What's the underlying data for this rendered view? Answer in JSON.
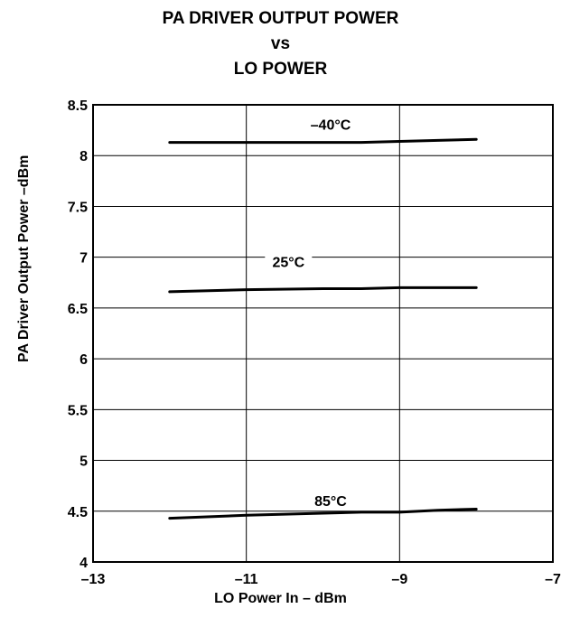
{
  "chart_data": {
    "type": "line",
    "title_lines": [
      "PA DRIVER OUTPUT POWER",
      "vs",
      "LO POWER"
    ],
    "xlabel": "LO Power In – dBm",
    "ylabel": "PA Driver Output Power –dBm",
    "xlim": [
      -13,
      -7
    ],
    "ylim": [
      4,
      8.5
    ],
    "x_ticks": [
      -13,
      -11,
      -9,
      -7
    ],
    "x_tick_labels": [
      "–13",
      "–11",
      "–9",
      "–7"
    ],
    "y_ticks": [
      4,
      4.5,
      5,
      5.5,
      6,
      6.5,
      7,
      7.5,
      8,
      8.5
    ],
    "y_tick_labels": [
      "4",
      "4.5",
      "5",
      "5.5",
      "6",
      "6.5",
      "7",
      "7.5",
      "8",
      "8.5"
    ],
    "grid": true,
    "series": [
      {
        "name": "–40°C",
        "x": [
          -12,
          -11,
          -10,
          -9.5,
          -9,
          -8.5,
          -8
        ],
        "y": [
          8.13,
          8.13,
          8.13,
          8.13,
          8.14,
          8.15,
          8.16
        ]
      },
      {
        "name": "25°C",
        "x": [
          -12,
          -11,
          -10,
          -9.5,
          -9,
          -8.5,
          -8
        ],
        "y": [
          6.66,
          6.68,
          6.69,
          6.69,
          6.7,
          6.7,
          6.7
        ]
      },
      {
        "name": "85°C",
        "x": [
          -12,
          -11,
          -10,
          -9.5,
          -9,
          -8.5,
          -8
        ],
        "y": [
          4.43,
          4.46,
          4.48,
          4.49,
          4.49,
          4.51,
          4.52
        ]
      }
    ],
    "annotations": [
      {
        "text": "–40°C",
        "x": -9.9,
        "y": 8.28
      },
      {
        "text": "25°C",
        "x": -10.45,
        "y": 6.93
      },
      {
        "text": "85°C",
        "x": -9.9,
        "y": 4.58
      }
    ]
  }
}
